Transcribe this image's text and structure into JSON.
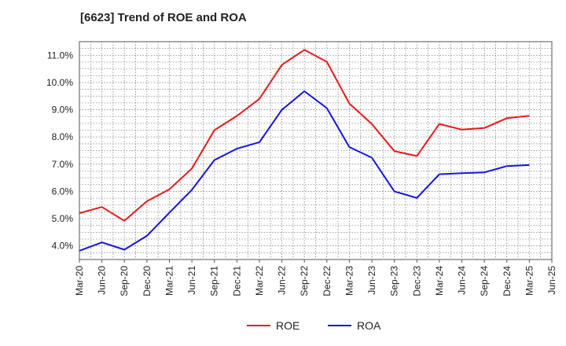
{
  "chart_data": {
    "type": "line",
    "title": "[6623]  Trend of ROE and ROA",
    "xlabel": "",
    "ylabel": "",
    "categories": [
      "Mar-20",
      "Jun-20",
      "Sep-20",
      "Dec-20",
      "Mar-21",
      "Jun-21",
      "Sep-21",
      "Dec-21",
      "Mar-22",
      "Jun-22",
      "Sep-22",
      "Dec-22",
      "Mar-23",
      "Jun-23",
      "Sep-23",
      "Dec-23",
      "Mar-24",
      "Jun-24",
      "Sep-24",
      "Dec-24",
      "Mar-25",
      "Jun-25"
    ],
    "yticks": [
      "4.0%",
      "5.0%",
      "6.0%",
      "7.0%",
      "8.0%",
      "9.0%",
      "10.0%",
      "11.0%"
    ],
    "ylim": [
      3.5,
      11.5
    ],
    "grid": true,
    "legend": "bottom",
    "series": [
      {
        "name": "ROE",
        "color": "#e8191a",
        "values": [
          5.2,
          5.43,
          4.92,
          5.64,
          6.08,
          6.84,
          8.25,
          8.77,
          9.4,
          10.65,
          11.2,
          10.76,
          9.23,
          8.48,
          7.48,
          7.3,
          8.48,
          8.27,
          8.33,
          8.69,
          8.78,
          null
        ]
      },
      {
        "name": "ROA",
        "color": "#1414e0",
        "values": [
          3.82,
          4.13,
          3.86,
          4.37,
          5.22,
          6.06,
          7.15,
          7.57,
          7.81,
          9.0,
          9.68,
          9.06,
          7.63,
          7.24,
          6.0,
          5.76,
          6.63,
          6.67,
          6.7,
          6.93,
          6.97,
          null
        ]
      }
    ]
  }
}
